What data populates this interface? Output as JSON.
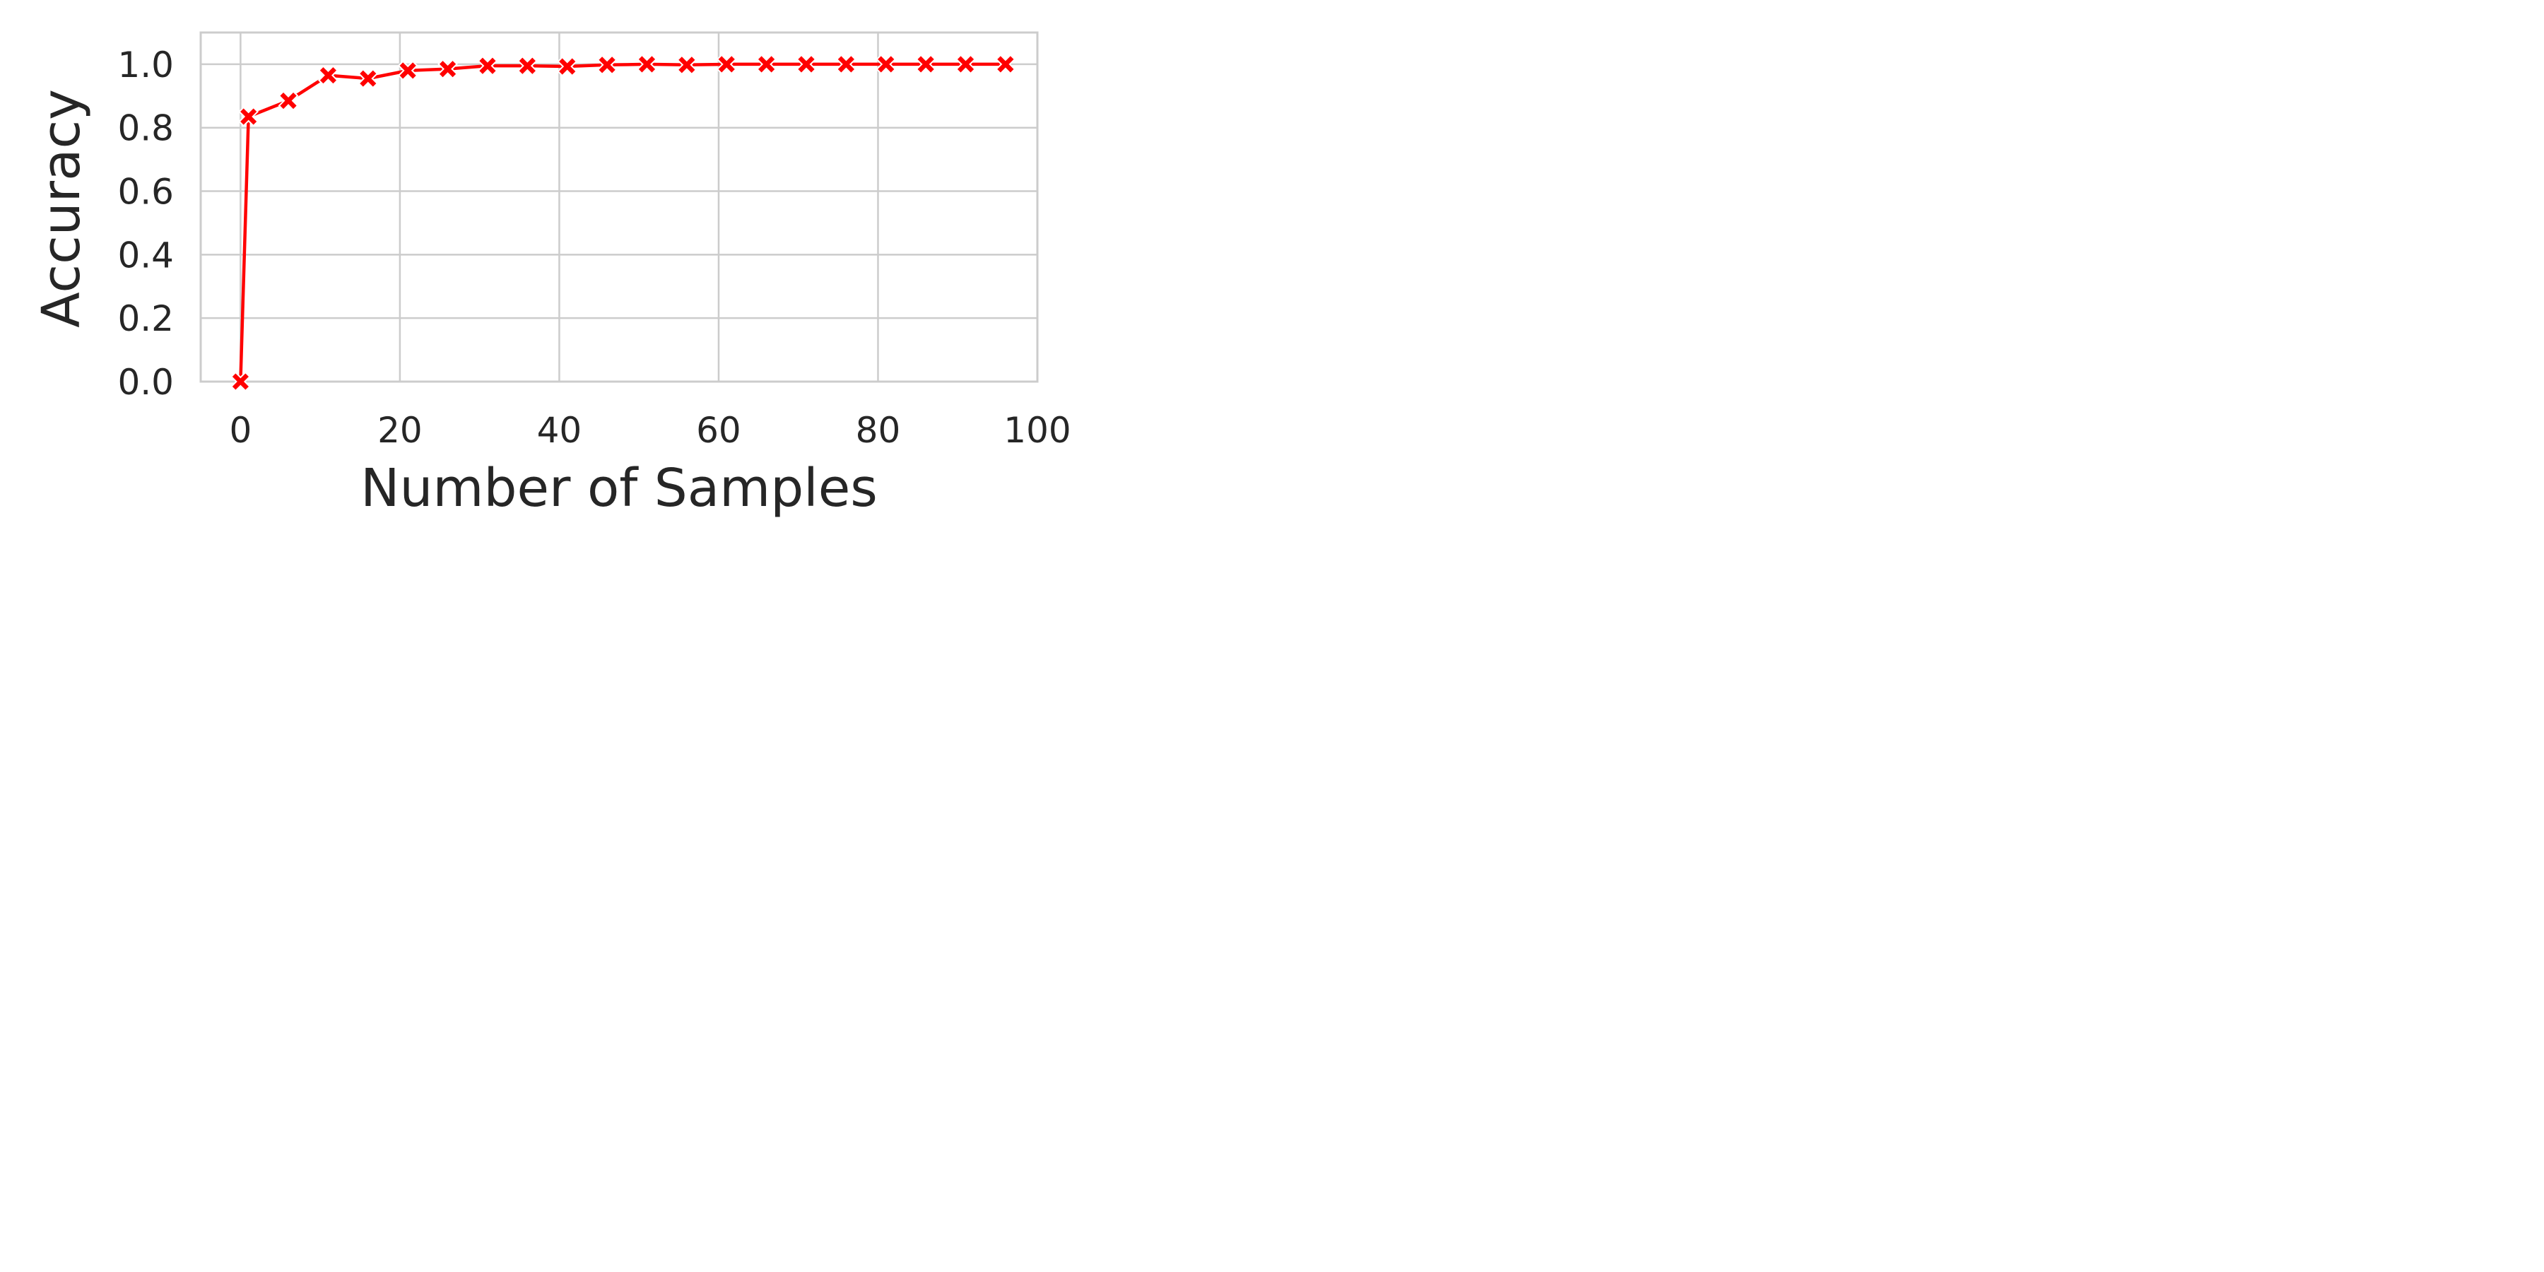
{
  "chart_data": {
    "type": "line",
    "title": "",
    "xlabel": "Number of Samples",
    "ylabel": "Accuracy",
    "xlim": [
      -5,
      100
    ],
    "ylim": [
      0.0,
      1.1
    ],
    "x_ticks": [
      "0",
      "20",
      "40",
      "60",
      "80",
      "100"
    ],
    "y_ticks": [
      "0.0",
      "0.2",
      "0.4",
      "0.6",
      "0.8",
      "1.0"
    ],
    "grid": true,
    "legend": "none",
    "series": [
      {
        "color": "#ff0000",
        "marker": "x-filled",
        "x": [
          0,
          1,
          6,
          11,
          16,
          21,
          26,
          31,
          36,
          41,
          46,
          51,
          56,
          61,
          66,
          71,
          76,
          81,
          86,
          91,
          96
        ],
        "values": [
          0.0,
          0.835,
          0.885,
          0.965,
          0.955,
          0.98,
          0.985,
          0.995,
          0.995,
          0.993,
          0.998,
          1.0,
          0.998,
          1.0,
          1.0,
          1.0,
          1.0,
          1.0,
          1.0,
          1.0,
          1.0
        ]
      }
    ]
  }
}
